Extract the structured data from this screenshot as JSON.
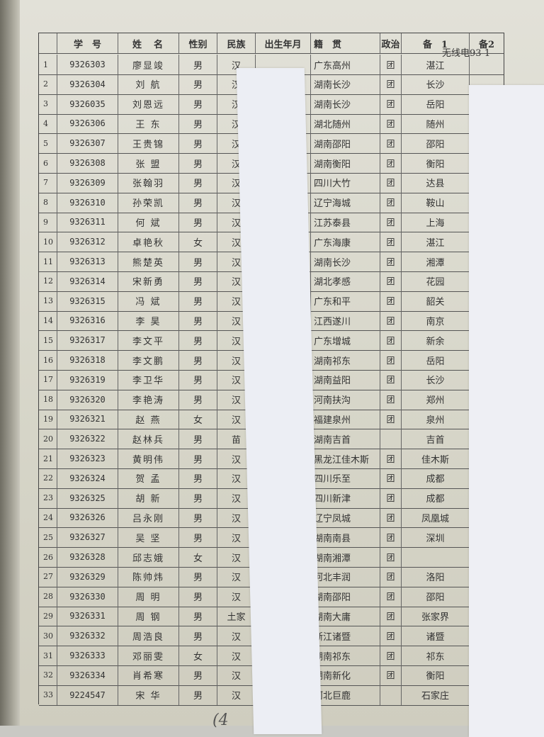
{
  "title": "无线电93-1",
  "page_mark": "(4",
  "headers": [
    "",
    "学　号",
    "姓　名",
    "性别",
    "民族",
    "出生年月",
    "籍　贯",
    "政治",
    "备　1",
    "备2"
  ],
  "rows": [
    [
      "1",
      "9326303",
      "廖显竣",
      "男",
      "汉",
      "",
      "广东高州",
      "团",
      "湛江"
    ],
    [
      "2",
      "9326304",
      "刘 航",
      "男",
      "汉",
      "",
      "湖南长沙",
      "团",
      "长沙"
    ],
    [
      "3",
      "9326035",
      "刘恩远",
      "男",
      "汉",
      "",
      "湖南长沙",
      "团",
      "岳阳"
    ],
    [
      "4",
      "9326306",
      "王 东",
      "男",
      "汉",
      "",
      "湖北随州",
      "团",
      "随州"
    ],
    [
      "5",
      "9326307",
      "王贵锦",
      "男",
      "汉",
      "",
      "湖南邵阳",
      "团",
      "邵阳"
    ],
    [
      "6",
      "9326308",
      "张 盟",
      "男",
      "汉",
      "",
      "湖南衡阳",
      "团",
      "衡阳"
    ],
    [
      "7",
      "9326309",
      "张翰羽",
      "男",
      "汉",
      "",
      "四川大竹",
      "团",
      "达县"
    ],
    [
      "8",
      "9326310",
      "孙荣凯",
      "男",
      "汉",
      "",
      "辽宁海城",
      "团",
      "鞍山"
    ],
    [
      "9",
      "9326311",
      "何 斌",
      "男",
      "汉",
      "",
      "江苏泰县",
      "团",
      "上海"
    ],
    [
      "10",
      "9326312",
      "卓艳秋",
      "女",
      "汉",
      "",
      "广东海康",
      "团",
      "湛江"
    ],
    [
      "11",
      "9326313",
      "熊楚英",
      "男",
      "汉",
      "",
      "湖南长沙",
      "团",
      "湘潭"
    ],
    [
      "12",
      "9326314",
      "宋新勇",
      "男",
      "汉",
      "",
      "湖北孝感",
      "团",
      "花园"
    ],
    [
      "13",
      "9326315",
      "冯 斌",
      "男",
      "汉",
      "",
      "广东和平",
      "团",
      "韶关"
    ],
    [
      "14",
      "9326316",
      "李 昊",
      "男",
      "汉",
      "",
      "江西遂川",
      "团",
      "南京"
    ],
    [
      "15",
      "9326317",
      "李文平",
      "男",
      "汉",
      "",
      "广东增城",
      "团",
      "新余"
    ],
    [
      "16",
      "9326318",
      "李文鹏",
      "男",
      "汉",
      "",
      "湖南祁东",
      "团",
      "岳阳"
    ],
    [
      "17",
      "9326319",
      "李卫华",
      "男",
      "汉",
      "",
      "湖南益阳",
      "团",
      "长沙"
    ],
    [
      "18",
      "9326320",
      "李艳涛",
      "男",
      "汉",
      "",
      "河南扶沟",
      "团",
      "郑州"
    ],
    [
      "19",
      "9326321",
      "赵 燕",
      "女",
      "汉",
      "",
      "福建泉州",
      "团",
      "泉州"
    ],
    [
      "20",
      "9326322",
      "赵林兵",
      "男",
      "苗",
      "",
      "湖南吉首",
      "",
      "吉首"
    ],
    [
      "21",
      "9326323",
      "黄明伟",
      "男",
      "汉",
      "",
      "黑龙江佳木斯",
      "团",
      "佳木斯"
    ],
    [
      "22",
      "9326324",
      "贺 孟",
      "男",
      "汉",
      "",
      "四川乐至",
      "团",
      "成都"
    ],
    [
      "23",
      "9326325",
      "胡 新",
      "男",
      "汉",
      "",
      "四川新津",
      "团",
      "成都"
    ],
    [
      "24",
      "9326326",
      "吕永刚",
      "男",
      "汉",
      "",
      "辽宁凤城",
      "团",
      "凤凰城"
    ],
    [
      "25",
      "9326327",
      "吴 坚",
      "男",
      "汉",
      "",
      "湖南南县",
      "团",
      "深圳"
    ],
    [
      "26",
      "9326328",
      "邱志娥",
      "女",
      "汉",
      "",
      "湖南湘潭",
      "团",
      ""
    ],
    [
      "27",
      "9326329",
      "陈帅炜",
      "男",
      "汉",
      "",
      "河北丰润",
      "团",
      "洛阳"
    ],
    [
      "28",
      "9326330",
      "周 明",
      "男",
      "汉",
      "",
      "湖南邵阳",
      "团",
      "邵阳"
    ],
    [
      "29",
      "9326331",
      "周 钢",
      "男",
      "土家",
      "",
      "湖南大庸",
      "团",
      "张家界"
    ],
    [
      "30",
      "9326332",
      "周浩良",
      "男",
      "汉",
      "",
      "浙江诸暨",
      "团",
      "诸暨"
    ],
    [
      "31",
      "9326333",
      "邓丽雯",
      "女",
      "汉",
      "",
      "湖南祁东",
      "团",
      "祁东"
    ],
    [
      "32",
      "9326334",
      "肖希寒",
      "男",
      "汉",
      "",
      "湖南新化",
      "团",
      "衡阳"
    ],
    [
      "33",
      "9224547",
      "宋 华",
      "男",
      "汉",
      "",
      "河北巨鹿",
      "",
      "石家庄"
    ]
  ]
}
